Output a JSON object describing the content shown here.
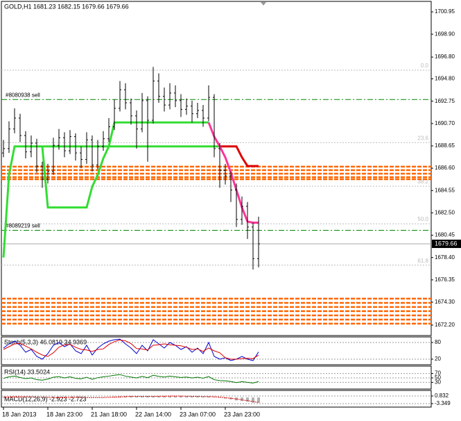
{
  "chart_data": [
    {
      "type": "ohlc",
      "title": "GOLD,H1  1681.23 1682.15 1679.66 1679.66",
      "categories": [
        "18 Jan 2013",
        null,
        null,
        null,
        null,
        null,
        null,
        null,
        "18 Jan 23:00",
        null,
        null,
        null,
        null,
        null,
        null,
        null,
        "21 Jan 18:00",
        null,
        null,
        null,
        null,
        null,
        null,
        null,
        "22 Jan 14:00",
        null,
        null,
        null,
        null,
        null,
        null,
        null,
        "23 Jan 07:00",
        null,
        null,
        null,
        null,
        null,
        null,
        null,
        "23 Jan 23:00",
        null,
        null,
        null,
        null,
        null,
        null
      ],
      "bars": [
        [
          1688.0,
          1689.2,
          1687.6,
          1688.4
        ],
        [
          1688.4,
          1690.9,
          1688.0,
          1690.2
        ],
        [
          1690.2,
          1692.1,
          1689.8,
          1691.2
        ],
        [
          1691.2,
          1691.6,
          1689.0,
          1689.6
        ],
        [
          1689.6,
          1690.0,
          1687.5,
          1688.1
        ],
        [
          1688.1,
          1689.6,
          1687.6,
          1688.9
        ],
        [
          1688.9,
          1689.3,
          1686.2,
          1686.8
        ],
        [
          1686.8,
          1687.2,
          1684.8,
          1685.6
        ],
        [
          1685.6,
          1687.0,
          1685.2,
          1686.3
        ],
        [
          1686.3,
          1689.4,
          1686.0,
          1688.7
        ],
        [
          1688.7,
          1690.2,
          1688.3,
          1689.4
        ],
        [
          1689.4,
          1689.9,
          1687.6,
          1688.2
        ],
        [
          1688.2,
          1690.1,
          1687.9,
          1689.5
        ],
        [
          1689.5,
          1689.8,
          1687.3,
          1688.0
        ],
        [
          1688.0,
          1688.6,
          1686.6,
          1687.4
        ],
        [
          1687.4,
          1689.9,
          1687.0,
          1689.2
        ],
        [
          1689.2,
          1689.6,
          1686.3,
          1686.9
        ],
        [
          1686.9,
          1689.2,
          1686.5,
          1688.6
        ],
        [
          1688.6,
          1690.0,
          1688.2,
          1689.3
        ],
        [
          1689.3,
          1691.2,
          1689.0,
          1690.4
        ],
        [
          1690.4,
          1692.9,
          1690.1,
          1692.1
        ],
        [
          1692.1,
          1694.6,
          1691.8,
          1693.8
        ],
        [
          1693.8,
          1694.4,
          1692.0,
          1692.6
        ],
        [
          1692.6,
          1693.0,
          1690.6,
          1691.4
        ],
        [
          1691.4,
          1691.9,
          1688.4,
          1690.2
        ],
        [
          1690.2,
          1693.5,
          1689.9,
          1692.8
        ],
        [
          1692.8,
          1693.2,
          1687.2,
          1691.0
        ],
        [
          1691.0,
          1695.9,
          1690.7,
          1694.6
        ],
        [
          1694.6,
          1695.3,
          1692.6,
          1693.2
        ],
        [
          1693.2,
          1694.0,
          1691.8,
          1692.4
        ],
        [
          1692.4,
          1694.4,
          1692.0,
          1693.5
        ],
        [
          1693.5,
          1694.2,
          1692.2,
          1692.8
        ],
        [
          1692.8,
          1693.4,
          1691.3,
          1692.0
        ],
        [
          1692.0,
          1693.0,
          1691.5,
          1692.3
        ],
        [
          1692.3,
          1692.8,
          1690.8,
          1691.6
        ],
        [
          1691.6,
          1692.6,
          1691.2,
          1691.9
        ],
        [
          1691.9,
          1692.4,
          1690.4,
          1691.2
        ],
        [
          1691.2,
          1694.2,
          1690.9,
          1693.1
        ],
        [
          1693.1,
          1693.4,
          1687.6,
          1688.4
        ],
        [
          1688.4,
          1688.9,
          1684.8,
          1686.4
        ],
        [
          1686.4,
          1687.0,
          1685.1,
          1685.9
        ],
        [
          1685.9,
          1686.3,
          1683.5,
          1684.6
        ],
        [
          1684.6,
          1685.2,
          1681.2,
          1681.9
        ],
        [
          1681.9,
          1684.0,
          1681.4,
          1683.1
        ],
        [
          1683.1,
          1683.5,
          1680.1,
          1681.2
        ],
        [
          1681.2,
          1681.6,
          1677.3,
          1678.3
        ],
        [
          1678.3,
          1682.15,
          1677.5,
          1679.66
        ]
      ],
      "lines": [
        {
          "color": "#33dd33",
          "values": [
            1678.4,
            1686.0,
            1688.6,
            1688.6,
            1688.6,
            1688.6,
            1688.6,
            1688.6,
            1688.6,
            1688.6,
            1688.6,
            1688.6,
            1688.6,
            1688.6,
            1688.6,
            1688.6,
            1688.6,
            1688.6,
            1688.6,
            1688.6,
            1688.6,
            1688.6,
            1688.6,
            1688.6,
            1688.6,
            1688.6,
            1688.6,
            1688.6,
            1688.6,
            1688.6,
            1688.6,
            1688.6,
            1688.6,
            1688.6,
            1688.6,
            1688.6,
            1688.6,
            1688.6,
            1688.6,
            1688.6,
            null,
            null,
            null,
            null,
            null,
            null,
            null
          ]
        },
        {
          "color": "#dd0000",
          "values": [
            null,
            null,
            null,
            null,
            null,
            null,
            null,
            null,
            null,
            null,
            null,
            null,
            null,
            null,
            null,
            null,
            null,
            null,
            null,
            null,
            null,
            null,
            null,
            null,
            null,
            null,
            null,
            null,
            null,
            null,
            null,
            null,
            null,
            null,
            null,
            null,
            null,
            null,
            null,
            1688.6,
            1688.6,
            1688.6,
            1688.6,
            1687.6,
            1686.8,
            1686.8,
            1686.8
          ]
        },
        {
          "color": "#33dd33",
          "values": [
            null,
            null,
            null,
            null,
            null,
            null,
            null,
            1688.6,
            1683.0,
            1683.0,
            1683.0,
            1683.0,
            1683.0,
            1683.0,
            1683.0,
            1683.0,
            1684.9,
            1686.0,
            1687.5,
            1688.6,
            1690.8,
            1690.8,
            1690.8,
            1690.8,
            1690.8,
            1690.8,
            1690.8,
            1690.8,
            1690.8,
            1690.8,
            1690.8,
            1690.8,
            1690.8,
            1690.8,
            1690.8,
            1690.8,
            1690.8,
            1690.8,
            null,
            null,
            null,
            null,
            null,
            null,
            null,
            null,
            null
          ]
        },
        {
          "color": "#ff3399",
          "values": [
            null,
            null,
            null,
            null,
            null,
            null,
            null,
            null,
            null,
            null,
            null,
            null,
            null,
            null,
            null,
            null,
            null,
            null,
            null,
            null,
            null,
            null,
            null,
            null,
            null,
            null,
            null,
            null,
            null,
            null,
            null,
            null,
            null,
            null,
            null,
            null,
            null,
            1690.8,
            1689.5,
            1688.6,
            1687.6,
            1686.2,
            1684.6,
            1683.0,
            1681.7,
            1681.6,
            1681.6
          ]
        }
      ],
      "fibo": [
        {
          "label": "0.0",
          "price": 1695.6
        },
        {
          "label": "23.6",
          "price": 1688.95
        },
        {
          "label": "38.2",
          "price": 1684.95
        },
        {
          "label": "50.0",
          "price": 1681.5
        },
        {
          "label": "61.8",
          "price": 1677.7
        }
      ],
      "orders": [
        {
          "label": "#8080938 sell",
          "price": 1692.9
        },
        {
          "label": "#8089219 sell",
          "price": 1680.9
        }
      ],
      "order_color": "#008800",
      "zones": [
        1686.74,
        1686.42,
        1686.1,
        1685.78,
        1685.59,
        1674.63,
        1674.24,
        1673.86,
        1673.48,
        1673.09,
        1672.71,
        1672.33
      ],
      "zone_color": "#ff6600",
      "last_price": 1679.66,
      "ylim": [
        1671.24,
        1701.91
      ],
      "yticks": [
        1700.95,
        {
          "value": 1698.9,
          "label": "1698.90"
        },
        {
          "value": 1696.8,
          "label": "1696.80"
        },
        {
          "value": 1694.8,
          "label": "1694.80"
        },
        1692.75,
        {
          "value": 1690.7,
          "label": "1690.70"
        },
        1688.65,
        {
          "value": 1686.6,
          "label": "1686.60"
        },
        1684.55,
        {
          "value": 1682.5,
          "label": "1682.50"
        },
        1680.45,
        {
          "value": 1678.4,
          "label": "1678.40"
        },
        1676.35,
        {
          "value": 1674.3,
          "label": "1674.30"
        },
        {
          "value": 1672.2,
          "label": "1672.20"
        }
      ]
    },
    {
      "type": "line",
      "title": "Stoch(5,3,3) 46.0819 34.9369",
      "series": [
        {
          "color": "#0000cc",
          "values": [
            60,
            75,
            85,
            70,
            45,
            55,
            30,
            20,
            40,
            70,
            80,
            65,
            75,
            50,
            40,
            70,
            35,
            60,
            75,
            85,
            90,
            92,
            75,
            60,
            40,
            70,
            50,
            90,
            75,
            60,
            80,
            70,
            55,
            65,
            45,
            60,
            40,
            80,
            30,
            20,
            25,
            15,
            20,
            30,
            20,
            15,
            46.0819
          ]
        },
        {
          "color": "#dd0000",
          "values": [
            55,
            65,
            75,
            77,
            67,
            57,
            45,
            35,
            30,
            43,
            63,
            72,
            73,
            63,
            55,
            53,
            48,
            55,
            57,
            73,
            83,
            89,
            86,
            76,
            58,
            57,
            53,
            70,
            72,
            75,
            72,
            70,
            68,
            63,
            55,
            57,
            48,
            60,
            50,
            43,
            25,
            20,
            20,
            22,
            23,
            22,
            34.9369
          ]
        }
      ],
      "ylim": [
        0,
        100
      ],
      "yticks": [
        80,
        20
      ]
    },
    {
      "type": "line",
      "title": "RSI(14) 33.5024",
      "series": [
        {
          "color": "#007700",
          "values": [
            48,
            55,
            58,
            52,
            47,
            50,
            42,
            40,
            45,
            53,
            56,
            50,
            55,
            48,
            46,
            53,
            44,
            51,
            55,
            58,
            62,
            65,
            58,
            54,
            50,
            57,
            51,
            62,
            57,
            54,
            58,
            55,
            52,
            54,
            50,
            53,
            49,
            56,
            42,
            38,
            37,
            34,
            29,
            33,
            30,
            27,
            33.5024
          ]
        }
      ],
      "ylim": [
        0,
        100
      ],
      "yticks": [
        70,
        50,
        30
      ]
    },
    {
      "type": "bar",
      "title": "MACD(12,26,9) -2.923 -2.723",
      "values": [
        0.3,
        0.4,
        0.5,
        0.5,
        0.4,
        0.3,
        0.1,
        -0.1,
        -0.2,
        -0.1,
        0.0,
        0.1,
        0.1,
        0.1,
        0.0,
        0.0,
        -0.1,
        -0.1,
        0.0,
        0.2,
        0.4,
        0.6,
        0.7,
        0.7,
        0.6,
        0.6,
        0.6,
        0.7,
        0.8,
        0.8,
        0.8,
        0.8,
        0.7,
        0.7,
        0.6,
        0.5,
        0.4,
        0.5,
        0.2,
        -0.2,
        -0.6,
        -1.0,
        -1.6,
        -1.9,
        -2.3,
        -2.8,
        -2.923
      ],
      "color": "#b0b0b0",
      "signal": {
        "color": "#dd0000",
        "values": [
          0.2,
          0.3,
          0.4,
          0.4,
          0.4,
          0.4,
          0.3,
          0.2,
          0.1,
          0.0,
          0.0,
          0.0,
          0.1,
          0.1,
          0.1,
          0.0,
          0.0,
          0.0,
          0.0,
          0.1,
          0.2,
          0.3,
          0.5,
          0.6,
          0.6,
          0.6,
          0.6,
          0.6,
          0.7,
          0.7,
          0.8,
          0.8,
          0.8,
          0.7,
          0.7,
          0.6,
          0.5,
          0.5,
          0.4,
          0.2,
          -0.1,
          -0.4,
          -0.8,
          -1.3,
          -1.7,
          -2.2,
          -2.723
        ]
      },
      "ylim": [
        -3.349,
        0.832
      ],
      "yticks": [
        0.832,
        -3.349
      ]
    }
  ]
}
